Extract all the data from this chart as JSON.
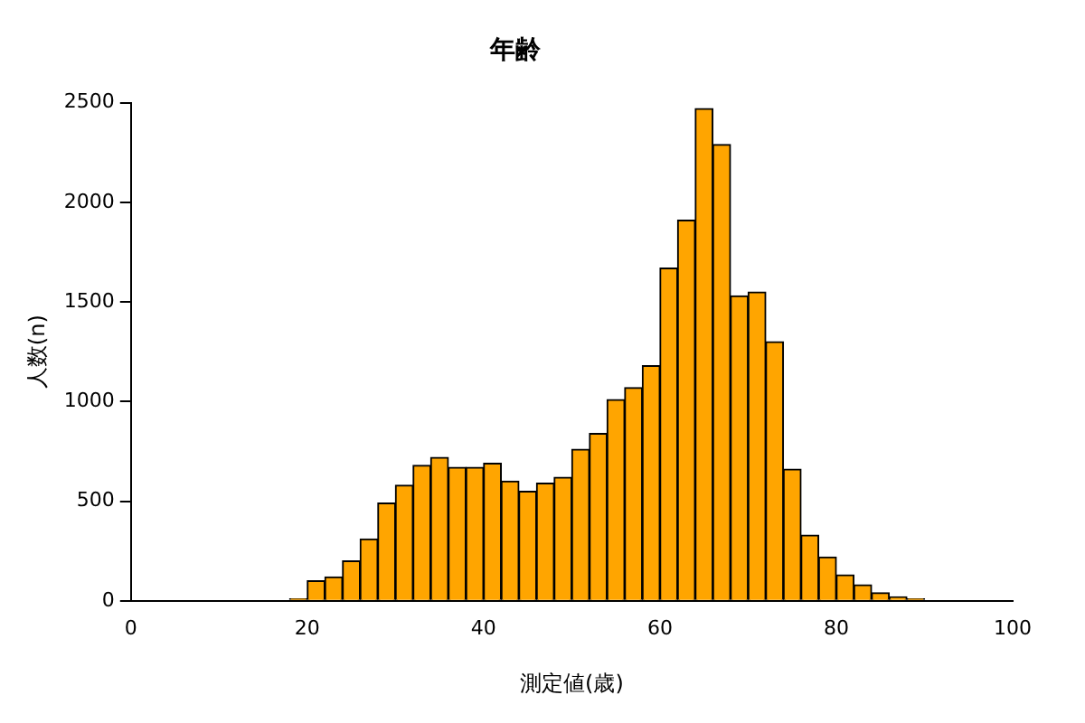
{
  "chart_data": {
    "type": "histogram",
    "title": "年齢",
    "xlabel": "測定値(歳)",
    "ylabel": "人数(n)",
    "color": "#ffa500",
    "bins": [
      18,
      20,
      22,
      24,
      26,
      28,
      30,
      32,
      34,
      36,
      38,
      40,
      42,
      44,
      46,
      48,
      50,
      52,
      54,
      56,
      58,
      60,
      62,
      64,
      66,
      68,
      70,
      72,
      74,
      76,
      78,
      80,
      82,
      84,
      86,
      88,
      90
    ],
    "values": [
      10,
      100,
      120,
      200,
      310,
      490,
      580,
      680,
      720,
      670,
      670,
      690,
      600,
      550,
      590,
      620,
      760,
      840,
      1010,
      1070,
      1180,
      1670,
      1910,
      2470,
      2290,
      1530,
      1550,
      1300,
      660,
      330,
      220,
      130,
      80,
      40,
      20,
      10
    ],
    "xlim": [
      0,
      100
    ],
    "xticks": [
      0,
      20,
      40,
      60,
      80,
      100
    ],
    "ylim": [
      0,
      2500
    ],
    "yticks": [
      0,
      500,
      1000,
      1500,
      2000,
      2500
    ],
    "grid": false,
    "legend": false
  }
}
